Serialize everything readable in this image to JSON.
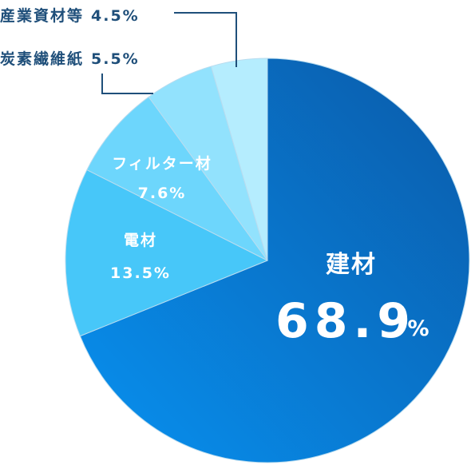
{
  "chart_data": {
    "type": "pie",
    "slices": [
      {
        "category": "建材",
        "value": 68.9,
        "value_text": "68.9",
        "pct_sign": "%",
        "color": "#0a72d8"
      },
      {
        "category": "電材",
        "value": 13.5,
        "value_text": "13.5%",
        "color": "#47c7f9"
      },
      {
        "category": "フィルター材",
        "value": 7.6,
        "value_text": "7.6%",
        "color": "#6dd6fc"
      },
      {
        "category": "炭素繊維紙",
        "value": 5.5,
        "value_text": "5.5%",
        "color": "#92e2fd"
      },
      {
        "category": "産業資材等",
        "value": 4.5,
        "value_text": "4.5%",
        "color": "#b5edfe"
      }
    ],
    "gradient_start": "#0891f0",
    "gradient_end": "#0a5aa8",
    "leader_color": "#1f4f7a",
    "label_color_dark": "#1f4f7a",
    "label_color_light": "#ffffff"
  }
}
